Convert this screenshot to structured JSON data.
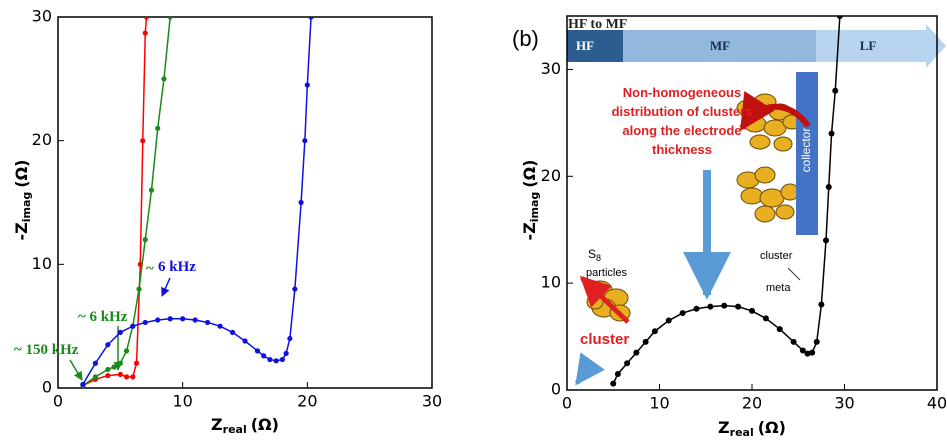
{
  "chart_data": [
    {
      "type": "line",
      "x_label": {
        "text": "Z",
        "sub": "real",
        "unit": "(Ω)"
      },
      "y_label": {
        "text": "-Z",
        "sub": "imag",
        "unit": "(Ω)"
      },
      "xlim": [
        0,
        30
      ],
      "ylim": [
        0,
        30
      ],
      "xticks": [
        0,
        10,
        20,
        30
      ],
      "yticks": [
        0,
        10,
        20,
        30
      ],
      "series": [
        {
          "color": "#ff0000",
          "x": [
            2,
            3,
            4,
            5,
            5.5,
            6,
            6.3,
            6.6,
            6.8,
            7,
            7.1
          ],
          "values": [
            0.2,
            0.7,
            1,
            1.1,
            0.9,
            0.9,
            2,
            10,
            20,
            28.7,
            30
          ]
        },
        {
          "color": "#1a8a1a",
          "x": [
            2,
            3,
            4,
            4.5,
            5,
            5.5,
            6,
            6.5,
            7,
            7.5,
            8,
            8.5,
            9
          ],
          "values": [
            0.2,
            0.9,
            1.5,
            1.7,
            2,
            3,
            5,
            8,
            12,
            16,
            21,
            25,
            30
          ]
        },
        {
          "color": "#1010e0",
          "x": [
            2,
            3,
            4,
            5,
            6,
            7,
            8,
            9,
            10,
            11,
            12,
            13,
            14,
            15,
            16,
            16.5,
            17,
            17.5,
            18,
            18.3,
            18.6,
            19,
            19.5,
            19.8,
            20,
            20.3
          ],
          "values": [
            0.3,
            2,
            3.5,
            4.5,
            5,
            5.3,
            5.5,
            5.6,
            5.6,
            5.5,
            5.3,
            5,
            4.5,
            3.8,
            3,
            2.6,
            2.3,
            2.2,
            2.3,
            2.8,
            4,
            8,
            15,
            20,
            24.5,
            30
          ]
        }
      ],
      "annotations": [
        {
          "text": "6 kHz",
          "color": "#1010e0"
        },
        {
          "text": "~",
          "color": "#1a8a1a"
        },
        {
          "text": "~ 6 kHz",
          "color": "#1a8a1a"
        },
        {
          "text": "~ 150 kHz",
          "color": "#1a8a1a"
        }
      ]
    },
    {
      "type": "line",
      "x_label": {
        "text": "Z",
        "sub": "real",
        "unit": "(Ω)"
      },
      "y_label": {
        "text": "-Z",
        "sub": "imag",
        "unit": "(Ω)"
      },
      "xlim": [
        0,
        40
      ],
      "ylim": [
        0,
        35
      ],
      "xticks": [
        0,
        10,
        20,
        30,
        40
      ],
      "yticks": [
        0,
        10,
        20,
        30
      ],
      "series": [
        {
          "color": "#000000",
          "x": [
            5,
            5.5,
            6.5,
            7.5,
            8.5,
            9.5,
            11,
            12.5,
            14,
            15.5,
            17,
            18.5,
            20,
            21.5,
            23,
            24.5,
            25.5,
            26,
            26.5,
            27,
            27.5,
            28,
            28.3,
            28.6,
            29,
            29.5
          ],
          "values": [
            0.6,
            1.5,
            2.5,
            3.5,
            4.5,
            5.5,
            6.5,
            7.2,
            7.6,
            7.8,
            7.9,
            7.8,
            7.4,
            6.7,
            5.7,
            4.5,
            3.7,
            3.4,
            3.5,
            4.5,
            8,
            14,
            19,
            24,
            28,
            35
          ]
        }
      ],
      "annotations": [
        {
          "text": "(b)",
          "color": "#000000"
        },
        {
          "text": "HF to MF",
          "color": "#222222"
        },
        {
          "text": "HF",
          "color": "#ffffff"
        },
        {
          "text": "MF",
          "color": "#1a2a50"
        },
        {
          "text": "LF",
          "color": "#1a2a50"
        },
        {
          "text": "Non-homogeneous",
          "color": "#e02020"
        },
        {
          "text": "distribution of clusters",
          "color": "#e02020"
        },
        {
          "text": "along the electrode",
          "color": "#e02020"
        },
        {
          "text": "thickness",
          "color": "#e02020"
        },
        {
          "text": "S",
          "sub": "8",
          "color": "#000000"
        },
        {
          "text": "particles",
          "color": "#000000"
        },
        {
          "text": "cluster",
          "color": "#e02020"
        },
        {
          "text": "cluster",
          "color": "#000000"
        },
        {
          "text": "collector",
          "color": "#ffffff"
        },
        {
          "text": "meta",
          "color": "#000000"
        }
      ]
    }
  ]
}
